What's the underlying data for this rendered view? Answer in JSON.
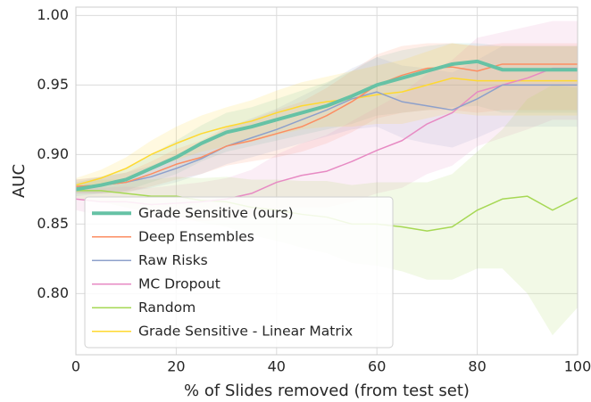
{
  "chart_data": {
    "type": "line",
    "xlabel": "% of Slides removed (from test set)",
    "ylabel": "AUC",
    "x": [
      0,
      5,
      10,
      15,
      20,
      25,
      30,
      35,
      40,
      45,
      50,
      55,
      60,
      65,
      70,
      75,
      80,
      85,
      90,
      95,
      100
    ],
    "xlim": [
      0,
      100
    ],
    "xticks": [
      0,
      20,
      40,
      60,
      80,
      100
    ],
    "ylim": [
      0.756,
      1.006
    ],
    "yticks": [
      {
        "value": 0.8,
        "label": "0.80"
      },
      0.85,
      {
        "value": 0.9,
        "label": "0.90"
      },
      0.95,
      {
        "value": 1.0,
        "label": "1.00"
      }
    ],
    "grid": true,
    "legend": "lower left",
    "series": [
      {
        "name": "Grade Sensitive (ours)",
        "color": "#66c2a5",
        "linewidth": 4,
        "values": [
          0.875,
          0.878,
          0.882,
          0.89,
          0.898,
          0.908,
          0.916,
          0.92,
          0.925,
          0.93,
          0.935,
          0.942,
          0.95,
          0.955,
          0.96,
          0.965,
          0.967,
          0.961,
          0.961,
          0.961,
          0.961
        ],
        "lower": [
          0.87,
          0.872,
          0.874,
          0.88,
          0.886,
          0.895,
          0.902,
          0.906,
          0.91,
          0.914,
          0.918,
          0.922,
          0.928,
          0.93,
          0.932,
          0.934,
          0.935,
          0.93,
          0.93,
          0.93,
          0.93
        ],
        "upper": [
          0.88,
          0.884,
          0.89,
          0.9,
          0.91,
          0.921,
          0.93,
          0.934,
          0.94,
          0.946,
          0.952,
          0.96,
          0.97,
          0.975,
          0.978,
          0.98,
          0.98,
          0.978,
          0.978,
          0.978,
          0.978
        ]
      },
      {
        "name": "Deep Ensembles",
        "color": "#fc8d62",
        "linewidth": 1.5,
        "values": [
          0.877,
          0.878,
          0.88,
          0.886,
          0.893,
          0.898,
          0.906,
          0.91,
          0.915,
          0.92,
          0.928,
          0.938,
          0.95,
          0.957,
          0.962,
          0.963,
          0.96,
          0.965,
          0.965,
          0.965,
          0.965
        ],
        "lower": [
          0.872,
          0.872,
          0.873,
          0.877,
          0.882,
          0.886,
          0.892,
          0.895,
          0.898,
          0.902,
          0.908,
          0.916,
          0.926,
          0.93,
          0.932,
          0.932,
          0.93,
          0.932,
          0.932,
          0.932,
          0.932
        ],
        "upper": [
          0.882,
          0.884,
          0.887,
          0.895,
          0.904,
          0.91,
          0.92,
          0.925,
          0.932,
          0.938,
          0.948,
          0.96,
          0.972,
          0.978,
          0.98,
          0.98,
          0.978,
          0.98,
          0.98,
          0.98,
          0.98
        ]
      },
      {
        "name": "Raw Risks",
        "color": "#8da0cb",
        "linewidth": 1.5,
        "values": [
          0.877,
          0.878,
          0.88,
          0.884,
          0.89,
          0.897,
          0.906,
          0.912,
          0.918,
          0.925,
          0.932,
          0.94,
          0.945,
          0.938,
          0.935,
          0.932,
          0.94,
          0.95,
          0.95,
          0.95,
          0.95
        ],
        "lower": [
          0.872,
          0.872,
          0.873,
          0.876,
          0.88,
          0.886,
          0.893,
          0.898,
          0.903,
          0.908,
          0.913,
          0.918,
          0.92,
          0.912,
          0.908,
          0.905,
          0.912,
          0.92,
          0.92,
          0.92,
          0.92
        ],
        "upper": [
          0.882,
          0.884,
          0.887,
          0.892,
          0.9,
          0.908,
          0.919,
          0.926,
          0.933,
          0.942,
          0.951,
          0.962,
          0.97,
          0.964,
          0.962,
          0.959,
          0.968,
          0.978,
          0.978,
          0.978,
          0.978
        ]
      },
      {
        "name": "MC Dropout",
        "color": "#e78ac3",
        "linewidth": 1.5,
        "values": [
          0.868,
          0.866,
          0.866,
          0.864,
          0.865,
          0.866,
          0.868,
          0.872,
          0.88,
          0.885,
          0.888,
          0.895,
          0.903,
          0.91,
          0.922,
          0.93,
          0.945,
          0.95,
          0.955,
          0.962,
          0.962
        ],
        "lower": [
          0.86,
          0.856,
          0.855,
          0.852,
          0.852,
          0.852,
          0.853,
          0.855,
          0.86,
          0.862,
          0.862,
          0.866,
          0.872,
          0.876,
          0.886,
          0.892,
          0.906,
          0.912,
          0.918,
          0.925,
          0.925
        ],
        "upper": [
          0.876,
          0.876,
          0.877,
          0.876,
          0.878,
          0.88,
          0.883,
          0.889,
          0.9,
          0.908,
          0.914,
          0.924,
          0.934,
          0.944,
          0.958,
          0.968,
          0.984,
          0.988,
          0.992,
          0.996,
          0.996
        ]
      },
      {
        "name": "Random",
        "color": "#a6d854",
        "linewidth": 1.5,
        "values": [
          0.874,
          0.874,
          0.872,
          0.87,
          0.87,
          0.867,
          0.866,
          0.862,
          0.86,
          0.857,
          0.855,
          0.85,
          0.85,
          0.848,
          0.845,
          0.848,
          0.86,
          0.868,
          0.87,
          0.86,
          0.869
        ],
        "lower": [
          0.869,
          0.866,
          0.862,
          0.858,
          0.856,
          0.851,
          0.848,
          0.842,
          0.838,
          0.833,
          0.829,
          0.822,
          0.82,
          0.816,
          0.81,
          0.81,
          0.818,
          0.818,
          0.8,
          0.77,
          0.79
        ],
        "upper": [
          0.879,
          0.882,
          0.882,
          0.882,
          0.884,
          0.883,
          0.884,
          0.882,
          0.882,
          0.881,
          0.881,
          0.878,
          0.88,
          0.88,
          0.88,
          0.886,
          0.902,
          0.918,
          0.94,
          0.95,
          0.948
        ]
      },
      {
        "name": "Grade Sensitive - Linear Matrix",
        "color": "#ffd92f",
        "linewidth": 1.5,
        "values": [
          0.878,
          0.883,
          0.89,
          0.9,
          0.908,
          0.915,
          0.92,
          0.924,
          0.93,
          0.935,
          0.938,
          0.94,
          0.943,
          0.945,
          0.95,
          0.955,
          0.953,
          0.953,
          0.953,
          0.953,
          0.953
        ],
        "lower": [
          0.873,
          0.877,
          0.882,
          0.89,
          0.896,
          0.902,
          0.906,
          0.909,
          0.914,
          0.918,
          0.92,
          0.92,
          0.922,
          0.922,
          0.926,
          0.93,
          0.928,
          0.928,
          0.928,
          0.928,
          0.928
        ],
        "upper": [
          0.883,
          0.889,
          0.898,
          0.91,
          0.92,
          0.928,
          0.934,
          0.939,
          0.946,
          0.952,
          0.956,
          0.96,
          0.964,
          0.968,
          0.974,
          0.98,
          0.978,
          0.978,
          0.978,
          0.978,
          0.978
        ]
      }
    ]
  }
}
